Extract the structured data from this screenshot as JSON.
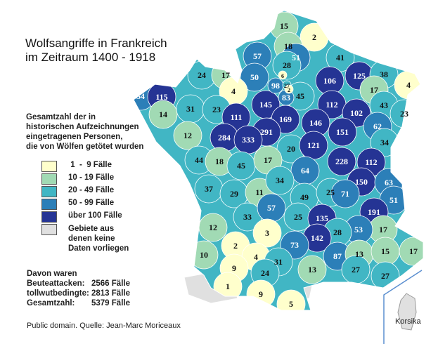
{
  "title_lines": [
    "Wolfsangriffe in Frankreich",
    "im Zeitraum 1400 - 1918"
  ],
  "legend": {
    "heading_lines": [
      "Gesamtzahl der in",
      "historischen Aufzeichnungen",
      "eingetragenen Personen,",
      "die von Wölfen getötet wurden"
    ],
    "items": [
      {
        "label": " 1  -  9 Fälle",
        "color": "#ffffcc"
      },
      {
        "label": "10 - 19 Fälle",
        "color": "#a1dab4"
      },
      {
        "label": "20 - 49 Fälle",
        "color": "#41b6c4"
      },
      {
        "label": "50 - 99 Fälle",
        "color": "#2c7fb8"
      },
      {
        "label": "über 100 Fälle",
        "color": "#253494"
      },
      {
        "label": "Gebiete aus denen keine Daten vorliegen",
        "color": "#e0e0e0"
      }
    ],
    "nodata_lines": [
      "Gebiete aus",
      "denen keine",
      "Daten vorliegen"
    ]
  },
  "stats": {
    "heading": "Davon waren",
    "rows": [
      {
        "label": "Beuteattacken:",
        "value": "2566 Fälle"
      },
      {
        "label": "tollwutbedingte:",
        "value": "2813 Fälle"
      },
      {
        "label": "Gesamtzahl:",
        "value": "5379 Fälle"
      }
    ]
  },
  "credit": "Public domain. Quelle: Jean-Marc Moriceaux",
  "korsika_label": "Korsika",
  "departments": [
    15,
    2,
    18,
    57,
    51,
    41,
    28,
    24,
    17,
    50,
    6,
    98,
    27,
    2,
    45,
    106,
    125,
    38,
    4,
    17,
    54,
    115,
    4,
    145,
    83,
    14,
    31,
    23,
    112,
    43,
    23,
    111,
    169,
    146,
    102,
    62,
    12,
    284,
    291,
    333,
    151,
    20,
    121,
    34,
    44,
    18,
    45,
    17,
    228,
    112,
    64,
    37,
    29,
    11,
    34,
    150,
    63,
    49,
    25,
    71,
    51,
    33,
    57,
    25,
    135,
    191,
    12,
    3,
    17,
    53,
    28,
    142,
    73,
    2,
    10,
    4,
    87,
    13,
    15,
    17,
    31,
    9,
    13,
    27,
    27,
    24,
    1,
    9,
    5
  ]
}
